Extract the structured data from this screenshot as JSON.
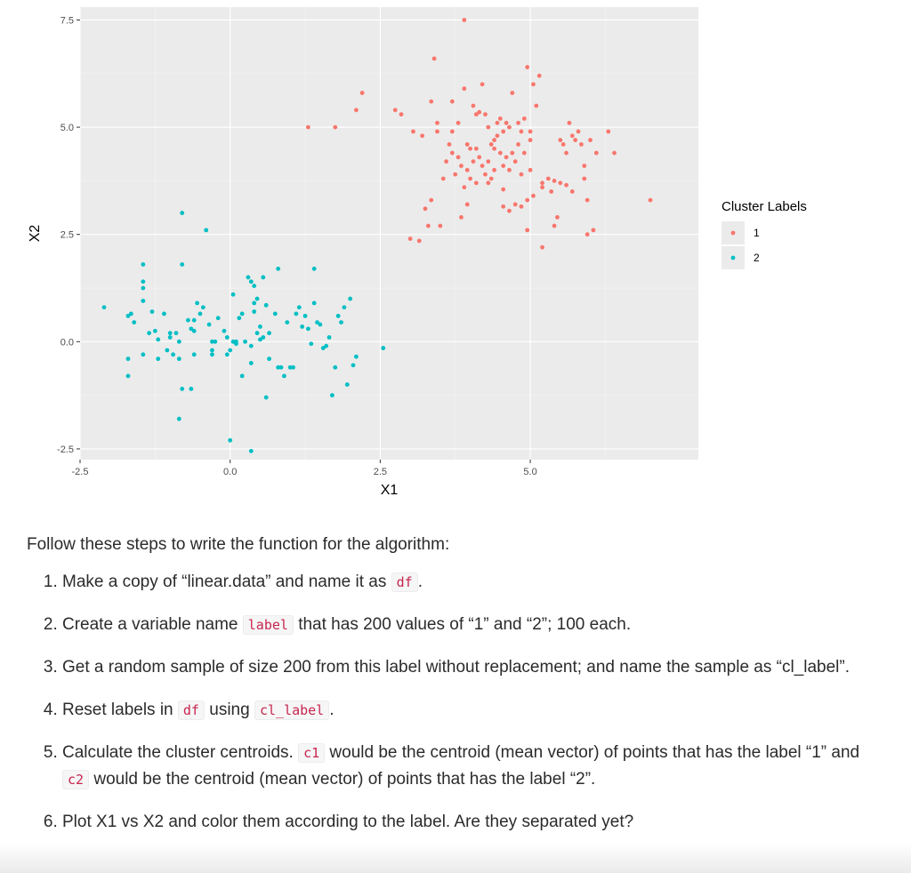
{
  "chart_data": {
    "type": "scatter",
    "xlabel": "X1",
    "ylabel": "X2",
    "xlim": [
      -2.5,
      7.8
    ],
    "ylim": [
      -2.75,
      7.8
    ],
    "xticks": [
      -2.5,
      0.0,
      2.5,
      5.0
    ],
    "xtick_labels": [
      "-2.5",
      "0.0",
      "2.5",
      "5.0"
    ],
    "yticks": [
      -2.5,
      0.0,
      2.5,
      5.0,
      7.5
    ],
    "ytick_labels": [
      "-2.5",
      "0.0",
      "2.5",
      "5.0",
      "7.5"
    ],
    "grid": true,
    "legend": {
      "title": "Cluster Labels",
      "placement": "right",
      "entries": [
        {
          "label": "1",
          "color": "#F8766D"
        },
        {
          "label": "2",
          "color": "#00BFC4"
        }
      ]
    },
    "series": [
      {
        "name": "1",
        "color": "#F8766D",
        "points": [
          [
            3.9,
            7.5
          ],
          [
            3.4,
            6.6
          ],
          [
            4.0,
            4.5
          ],
          [
            2.2,
            5.8
          ],
          [
            2.1,
            5.4
          ],
          [
            1.3,
            5.0
          ],
          [
            1.75,
            5.0
          ],
          [
            2.75,
            5.4
          ],
          [
            2.85,
            5.3
          ],
          [
            3.05,
            4.9
          ],
          [
            3.2,
            4.8
          ],
          [
            3.35,
            5.6
          ],
          [
            3.45,
            5.1
          ],
          [
            3.45,
            4.9
          ],
          [
            3.7,
            5.6
          ],
          [
            3.7,
            4.9
          ],
          [
            3.8,
            5.1
          ],
          [
            3.9,
            5.9
          ],
          [
            3.95,
            4.6
          ],
          [
            4.05,
            5.5
          ],
          [
            4.1,
            5.3
          ],
          [
            4.15,
            5.35
          ],
          [
            4.2,
            6.0
          ],
          [
            4.25,
            5.3
          ],
          [
            4.3,
            5.0
          ],
          [
            4.4,
            4.7
          ],
          [
            4.45,
            5.1
          ],
          [
            4.5,
            5.2
          ],
          [
            4.55,
            4.9
          ],
          [
            4.6,
            5.1
          ],
          [
            4.65,
            5.0
          ],
          [
            4.7,
            5.8
          ],
          [
            4.8,
            5.1
          ],
          [
            4.85,
            4.9
          ],
          [
            4.9,
            5.2
          ],
          [
            5.0,
            4.9
          ],
          [
            4.95,
            6.4
          ],
          [
            5.05,
            6.0
          ],
          [
            5.15,
            6.2
          ],
          [
            5.1,
            5.5
          ],
          [
            5.0,
            4.7
          ],
          [
            4.9,
            4.4
          ],
          [
            4.8,
            4.6
          ],
          [
            4.75,
            4.2
          ],
          [
            4.65,
            4.0
          ],
          [
            4.6,
            4.3
          ],
          [
            4.55,
            4.1
          ],
          [
            4.5,
            4.4
          ],
          [
            4.4,
            4.0
          ],
          [
            4.35,
            3.8
          ],
          [
            4.3,
            4.2
          ],
          [
            4.25,
            3.9
          ],
          [
            4.2,
            4.1
          ],
          [
            4.15,
            4.3
          ],
          [
            4.1,
            4.5
          ],
          [
            4.05,
            4.2
          ],
          [
            4.0,
            3.8
          ],
          [
            3.95,
            4.0
          ],
          [
            3.9,
            3.6
          ],
          [
            3.85,
            4.1
          ],
          [
            3.8,
            4.3
          ],
          [
            3.75,
            3.9
          ],
          [
            3.7,
            4.4
          ],
          [
            4.3,
            3.7
          ],
          [
            4.4,
            4.5
          ],
          [
            4.7,
            4.4
          ],
          [
            4.85,
            3.9
          ],
          [
            5.0,
            4.0
          ],
          [
            5.2,
            3.7
          ],
          [
            5.35,
            3.5
          ],
          [
            5.4,
            3.75
          ],
          [
            5.5,
            4.7
          ],
          [
            5.55,
            4.6
          ],
          [
            5.6,
            4.4
          ],
          [
            5.65,
            5.1
          ],
          [
            5.7,
            4.8
          ],
          [
            5.75,
            4.7
          ],
          [
            5.8,
            4.9
          ],
          [
            5.85,
            4.6
          ],
          [
            5.9,
            4.1
          ],
          [
            6.0,
            4.7
          ],
          [
            6.1,
            4.4
          ],
          [
            5.9,
            3.8
          ],
          [
            5.7,
            3.5
          ],
          [
            5.6,
            3.65
          ],
          [
            5.5,
            3.7
          ],
          [
            5.3,
            3.8
          ],
          [
            5.2,
            3.6
          ],
          [
            5.05,
            3.4
          ],
          [
            4.95,
            3.3
          ],
          [
            4.85,
            3.15
          ],
          [
            4.75,
            3.2
          ],
          [
            4.65,
            3.05
          ],
          [
            4.55,
            3.15
          ],
          [
            4.95,
            2.6
          ],
          [
            5.4,
            2.7
          ],
          [
            5.45,
            2.9
          ],
          [
            5.2,
            2.2
          ],
          [
            5.95,
            2.5
          ],
          [
            6.05,
            2.6
          ],
          [
            6.3,
            4.9
          ],
          [
            6.4,
            4.4
          ],
          [
            7.0,
            3.3
          ],
          [
            5.95,
            3.3
          ],
          [
            3.0,
            2.4
          ],
          [
            3.15,
            2.35
          ],
          [
            3.3,
            2.7
          ],
          [
            3.5,
            2.7
          ],
          [
            3.25,
            3.1
          ],
          [
            3.35,
            3.3
          ],
          [
            3.55,
            3.8
          ],
          [
            3.6,
            4.2
          ],
          [
            3.65,
            4.6
          ],
          [
            3.85,
            2.9
          ],
          [
            3.95,
            3.2
          ],
          [
            4.1,
            3.7
          ],
          [
            4.55,
            3.55
          ],
          [
            4.35,
            4.6
          ],
          [
            4.45,
            4.8
          ]
        ]
      },
      {
        "name": "2",
        "color": "#00BFC4",
        "points": [
          [
            -2.1,
            0.8
          ],
          [
            -1.7,
            0.6
          ],
          [
            -1.65,
            0.65
          ],
          [
            -1.6,
            0.45
          ],
          [
            -1.7,
            -0.4
          ],
          [
            -1.7,
            -0.8
          ],
          [
            -1.45,
            1.8
          ],
          [
            -1.45,
            1.4
          ],
          [
            -1.45,
            1.25
          ],
          [
            -1.45,
            0.95
          ],
          [
            -1.35,
            0.2
          ],
          [
            -1.45,
            -0.3
          ],
          [
            -1.3,
            0.7
          ],
          [
            -1.25,
            0.25
          ],
          [
            -1.2,
            0.05
          ],
          [
            -1.2,
            -0.4
          ],
          [
            -1.1,
            0.65
          ],
          [
            -1.05,
            -0.2
          ],
          [
            -1.0,
            0.1
          ],
          [
            -1.0,
            0.2
          ],
          [
            -0.95,
            -0.3
          ],
          [
            -0.9,
            0.2
          ],
          [
            -0.85,
            0.0
          ],
          [
            -0.85,
            -0.4
          ],
          [
            -0.8,
            1.8
          ],
          [
            -0.8,
            3.0
          ],
          [
            -0.8,
            -1.1
          ],
          [
            -0.85,
            -1.8
          ],
          [
            -0.65,
            -1.1
          ],
          [
            -0.7,
            0.5
          ],
          [
            -0.65,
            0.3
          ],
          [
            -0.6,
            0.5
          ],
          [
            -0.6,
            0.25
          ],
          [
            -0.6,
            -0.3
          ],
          [
            -0.55,
            0.9
          ],
          [
            -0.5,
            0.65
          ],
          [
            -0.45,
            0.8
          ],
          [
            -0.4,
            2.6
          ],
          [
            -0.35,
            0.4
          ],
          [
            -0.3,
            0.0
          ],
          [
            -0.3,
            -0.2
          ],
          [
            -0.3,
            -0.3
          ],
          [
            -0.2,
            0.55
          ],
          [
            -0.1,
            0.25
          ],
          [
            -0.05,
            0.1
          ],
          [
            -0.05,
            -0.3
          ],
          [
            0.05,
            0.0
          ],
          [
            0.05,
            1.1
          ],
          [
            0.1,
            0.0
          ],
          [
            0.1,
            -0.05
          ],
          [
            0.15,
            0.55
          ],
          [
            0.2,
            0.65
          ],
          [
            0.2,
            -0.8
          ],
          [
            0.3,
            1.5
          ],
          [
            0.35,
            1.4
          ],
          [
            0.35,
            -0.5
          ],
          [
            0.35,
            -0.1
          ],
          [
            0.4,
            0.9
          ],
          [
            0.4,
            0.7
          ],
          [
            0.4,
            1.3
          ],
          [
            0.45,
            1.0
          ],
          [
            0.45,
            0.2
          ],
          [
            0.5,
            0.35
          ],
          [
            0.5,
            0.05
          ],
          [
            0.55,
            1.5
          ],
          [
            0.55,
            0.1
          ],
          [
            0.6,
            0.85
          ],
          [
            0.65,
            0.2
          ],
          [
            0.65,
            -0.4
          ],
          [
            0.6,
            -1.3
          ],
          [
            0.75,
            0.65
          ],
          [
            0.8,
            1.7
          ],
          [
            0.8,
            -0.6
          ],
          [
            0.85,
            -0.6
          ],
          [
            0.9,
            -0.8
          ],
          [
            0.95,
            0.45
          ],
          [
            1.0,
            -0.6
          ],
          [
            1.05,
            -0.6
          ],
          [
            1.1,
            0.65
          ],
          [
            1.15,
            0.8
          ],
          [
            1.25,
            0.6
          ],
          [
            1.3,
            0.3
          ],
          [
            1.35,
            -0.05
          ],
          [
            1.4,
            0.9
          ],
          [
            1.4,
            1.7
          ],
          [
            1.45,
            0.45
          ],
          [
            1.5,
            0.4
          ],
          [
            1.55,
            -0.15
          ],
          [
            1.6,
            -0.1
          ],
          [
            1.65,
            0.1
          ],
          [
            1.7,
            -1.25
          ],
          [
            1.75,
            -0.6
          ],
          [
            1.8,
            0.6
          ],
          [
            1.85,
            0.45
          ],
          [
            1.9,
            0.8
          ],
          [
            1.95,
            -1.0
          ],
          [
            2.0,
            1.0
          ],
          [
            2.05,
            -0.55
          ],
          [
            2.1,
            -0.35
          ],
          [
            2.55,
            -0.15
          ],
          [
            0.0,
            -2.3
          ],
          [
            0.35,
            -2.55
          ],
          [
            -0.25,
            0.0
          ],
          [
            0.0,
            -0.2
          ],
          [
            1.2,
            0.35
          ],
          [
            0.25,
            0.0
          ]
        ]
      }
    ]
  },
  "instructions": {
    "intro": "Follow these steps to write the function for the algorithm:",
    "steps": [
      {
        "before": "Make a copy of “linear.data” and name it as ",
        "code1": "df",
        "middle": "",
        "code2": "",
        "after": "."
      },
      {
        "before": "Create a variable name ",
        "code1": "label",
        "middle": " that has 200 values of “1” and “2”; 100 each.",
        "code2": "",
        "after": ""
      },
      {
        "before": "Get a random sample of size 200 from this label without replacement; and name the sample as “cl_label”.",
        "code1": "",
        "middle": "",
        "code2": "",
        "after": ""
      },
      {
        "before": "Reset labels in ",
        "code1": "df",
        "middle": " using ",
        "code2": "cl_label",
        "after": "."
      },
      {
        "before": "Calculate the cluster centroids. ",
        "code1": "c1",
        "middle": " would be the centroid (mean vector) of points that has the label “1” and ",
        "code2": "c2",
        "after": " would be the centroid (mean vector) of points that has the label “2”."
      },
      {
        "before": "Plot X1 vs X2 and color them according to the label. Are they separated yet?",
        "code1": "",
        "middle": "",
        "code2": "",
        "after": ""
      }
    ]
  }
}
